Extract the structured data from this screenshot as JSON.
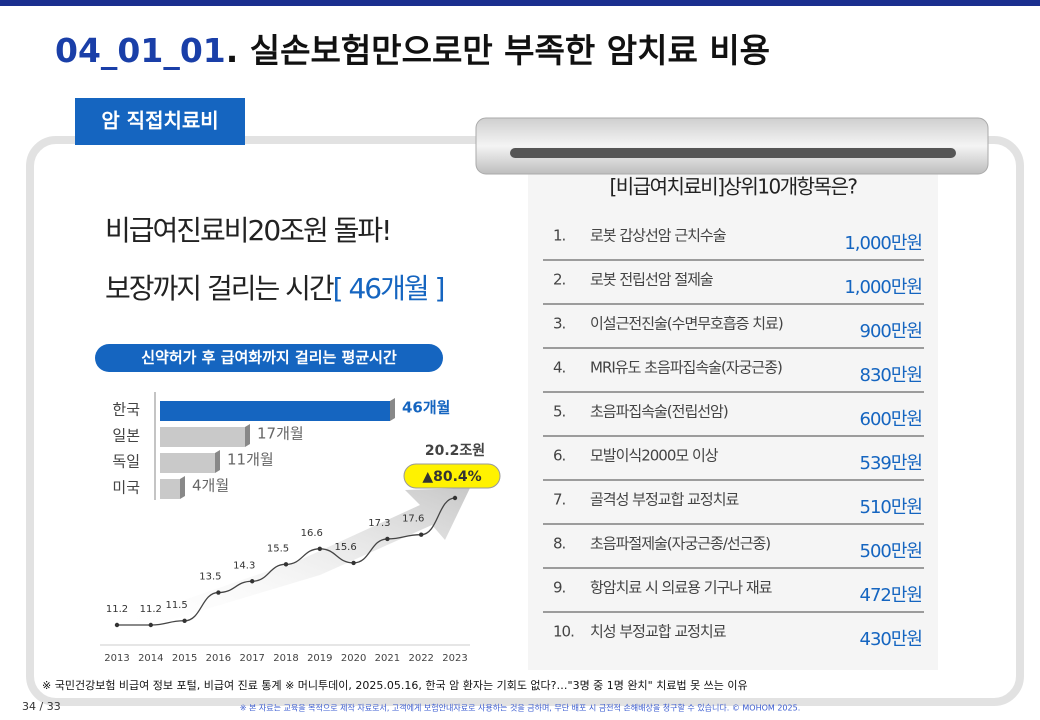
{
  "slide": {
    "title_code": "04_01_01",
    "title_text": ". 실손보험만으로만 부족한 암치료 비용",
    "tab": "암 직접치료비",
    "headline_1": "비급여진료비20조원 돌파!",
    "headline_2": "보장까지 걸리는 시간",
    "headline_2_highlight": "[ 46개월 ]",
    "pill": "신약허가 후 급여화까지 걸리는 평균시간",
    "list_title": "[비급여치료비]상위10개항목은?",
    "items": [
      {
        "num": "1.",
        "name": "로봇 갑상선암 근치수술",
        "cost": "1,000만원"
      },
      {
        "num": "2.",
        "name": "로봇 전립선암 절제술",
        "cost": "1,000만원"
      },
      {
        "num": "3.",
        "name": "이설근전진술(수면무호흡증 치료)",
        "cost": "900만원"
      },
      {
        "num": "4.",
        "name": "MRI유도 초음파집속술(자궁근종)",
        "cost": "830만원"
      },
      {
        "num": "5.",
        "name": "초음파집속술(전립선암)",
        "cost": "600만원"
      },
      {
        "num": "6.",
        "name": "모발이식2000모 이상",
        "cost": "539만원"
      },
      {
        "num": "7.",
        "name": "골격성 부정교합 교정치료",
        "cost": "510만원"
      },
      {
        "num": "8.",
        "name": "초음파절제술(자궁근종/선근종)",
        "cost": "500만원"
      },
      {
        "num": "9.",
        "name": "항암치료 시 의료용 기구나 재료",
        "cost": "472만원"
      },
      {
        "num": "10.",
        "name": "치성 부정교합 교정치료",
        "cost": "430만원"
      }
    ],
    "source": "※ 국민건강보험 비급여 정보 포털, 비급여 진료 통계 ※ 머니투데이, 2025.05.16, 한국 암 환자는 기회도 없다?…\"3명 중 1명 완치\" 치료법 못 쓰는 이유",
    "page": "34 / 33",
    "disclaimer": "※ 본 자료는 교육을 목적으로 제작 자료로서, 고객에게 보험안내자료로 사용하는 것을 금하며, 무단 배포 시 금전적 손해배상을 청구할 수 있습니다. © MOHOM 2025."
  },
  "chart_data": [
    {
      "type": "bar",
      "orientation": "horizontal",
      "categories": [
        "한국",
        "일본",
        "독일",
        "미국"
      ],
      "values": [
        46,
        17,
        11,
        4
      ],
      "value_labels": [
        "46개월",
        "17개월",
        "11개월",
        "4개월"
      ],
      "colors": [
        "#1565c0",
        "#c9c9c9",
        "#c9c9c9",
        "#c9c9c9"
      ]
    },
    {
      "type": "line",
      "categories": [
        "2013",
        "2014",
        "2015",
        "2016",
        "2017",
        "2018",
        "2019",
        "2020",
        "2021",
        "2022",
        "2023"
      ],
      "values": [
        11.2,
        11.2,
        11.5,
        13.5,
        14.3,
        15.5,
        16.6,
        15.6,
        17.3,
        17.6,
        20.2
      ],
      "value_labels": [
        "11.2",
        "11.2",
        "11.5",
        "13.5",
        "14.3",
        "15.5",
        "16.6",
        "15.6",
        "17.3",
        "17.6",
        "20.2조원"
      ],
      "annotation": "▲80.4%",
      "color": "#444"
    }
  ]
}
